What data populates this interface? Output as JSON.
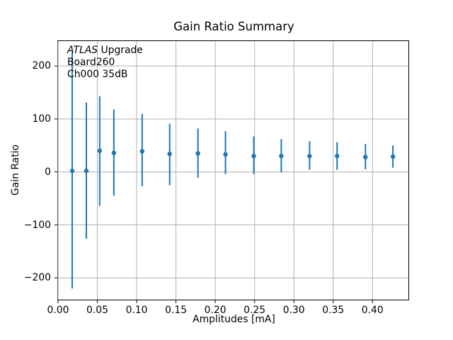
{
  "title": "Gain Ratio Summary",
  "annotation": {
    "line1_italic": "ATLAS",
    "line1_rest": " Upgrade",
    "line2": "Board260",
    "line3": "Ch000 35dB"
  },
  "chart_data": {
    "type": "scatter",
    "title": "Gain Ratio Summary",
    "xlabel": "Amplitudes [mA]",
    "ylabel": "Gain Ratio",
    "annotations": [
      "ATLAS Upgrade",
      "Board260",
      "Ch000 35dB"
    ],
    "grid": true,
    "legend": false,
    "xlim": [
      0,
      0.4457
    ],
    "ylim": [
      -241,
      247
    ],
    "xticks": [
      0.0,
      0.05,
      0.1,
      0.15,
      0.2,
      0.25,
      0.3,
      0.35,
      0.4
    ],
    "xtick_labels": [
      "0.00",
      "0.05",
      "0.10",
      "0.15",
      "0.20",
      "0.25",
      "0.30",
      "0.35",
      "0.40"
    ],
    "yticks": [
      -200,
      -100,
      0,
      100,
      200
    ],
    "ytick_labels": [
      "−200",
      "−100",
      "0",
      "100",
      "200"
    ],
    "series": [
      {
        "name": "gain-ratio-errorbars",
        "marker": "point",
        "color": "#1f77b4",
        "x": [
          0.018,
          0.036,
          0.053,
          0.071,
          0.107,
          0.142,
          0.178,
          0.213,
          0.249,
          0.284,
          0.32,
          0.355,
          0.391,
          0.426
        ],
        "y": [
          2,
          2,
          40,
          36,
          39,
          34,
          35,
          33,
          30,
          30,
          30,
          30,
          28,
          29
        ],
        "err_top": [
          226,
          131,
          143,
          118,
          110,
          91,
          82,
          77,
          67,
          62,
          58,
          56,
          53,
          50
        ],
        "err_bottom": [
          -220,
          -126,
          -64,
          -45,
          -27,
          -25,
          -11,
          -4,
          -4,
          -1,
          4,
          4,
          5,
          8
        ]
      }
    ],
    "colors": {
      "series": "#1f77b4",
      "grid": "#b0b0b0",
      "spine": "#000000",
      "background": "#ffffff",
      "text": "#000000"
    }
  }
}
